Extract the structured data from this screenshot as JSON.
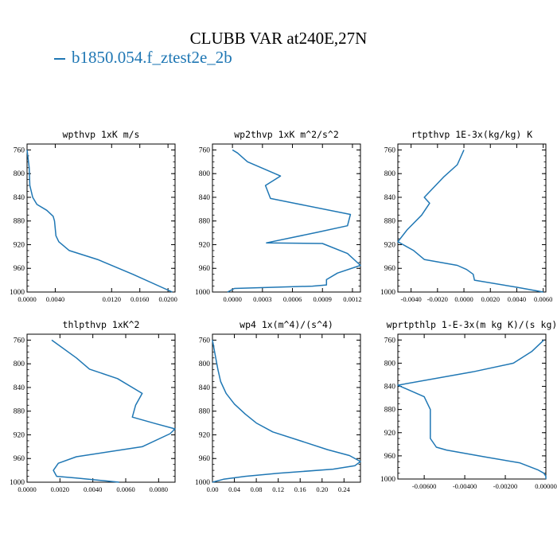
{
  "figure": {
    "title": "CLUBB VAR at240E,27N",
    "legend_label": "b1850.054.f_ztest2e_2b",
    "series_color": "#1f77b4"
  },
  "chart_data": [
    {
      "type": "line",
      "title": "wpthvp  1xK m/s",
      "ylim": [
        1000,
        750
      ],
      "yticks": [
        "760",
        "800",
        "840",
        "880",
        "920",
        "960",
        "1000"
      ],
      "xlim": [
        0.0,
        0.021
      ],
      "xticks": [
        "0.0000",
        "0.0040",
        "0.0120",
        "0.0160",
        "0.0200"
      ],
      "x": [
        0.0,
        0.0003,
        0.0004,
        0.0008,
        0.0014,
        0.0028,
        0.0037,
        0.0039,
        0.0041,
        0.0045,
        0.006,
        0.01,
        0.015,
        0.0206
      ],
      "y": [
        760,
        790,
        820,
        840,
        852,
        862,
        872,
        880,
        905,
        915,
        930,
        945,
        970,
        1000
      ]
    },
    {
      "type": "line",
      "title": "wp2thvp  1xK m^2/s^2",
      "ylim": [
        1000,
        750
      ],
      "yticks": [
        "760",
        "800",
        "840",
        "880",
        "920",
        "960",
        "1000"
      ],
      "xlim": [
        -0.0002,
        0.00128
      ],
      "xticks": [
        "0.0000",
        "0.0003",
        "0.0006",
        "0.0009",
        "0.0012"
      ],
      "x": [
        0.0,
        5e-05,
        0.00015,
        0.00048,
        0.00033,
        0.00038,
        0.00118,
        0.00115,
        0.00085,
        0.00034,
        0.0009,
        0.00115,
        0.00128,
        0.00105,
        0.00094,
        0.00094,
        0.0008,
        2e-05,
        -5e-05
      ],
      "y": [
        760,
        765,
        780,
        804,
        820,
        842,
        869,
        888,
        899,
        917,
        918,
        935,
        955,
        968,
        979,
        988,
        990,
        994,
        1000
      ]
    },
    {
      "type": "line",
      "title": "rtpthvp  1E-3x(kg/kg) K",
      "ylim": [
        1000,
        750
      ],
      "yticks": [
        "760",
        "800",
        "840",
        "880",
        "920",
        "960",
        "1000"
      ],
      "xlim": [
        -0.005,
        0.0062
      ],
      "xticks": [
        "-0.0040",
        "-0.0020",
        "0.0000",
        "0.0020",
        "0.0040",
        "0.0060"
      ],
      "x": [
        0.0,
        -0.0005,
        -0.0015,
        -0.003,
        -0.0026,
        -0.0032,
        -0.0043,
        -0.005,
        -0.0038,
        -0.003,
        -0.0005,
        0.0002,
        0.0007,
        0.0008,
        0.004,
        0.006
      ],
      "y": [
        760,
        785,
        805,
        840,
        850,
        870,
        895,
        915,
        930,
        945,
        955,
        962,
        970,
        980,
        992,
        1000
      ]
    },
    {
      "type": "line",
      "title": "thlpthvp  1xK^2",
      "ylim": [
        1000,
        750
      ],
      "yticks": [
        "760",
        "800",
        "840",
        "880",
        "920",
        "960",
        "1000"
      ],
      "xlim": [
        0.0,
        0.009
      ],
      "xticks": [
        "0.0000",
        "0.0020",
        "0.0040",
        "0.0060",
        "0.0080"
      ],
      "x": [
        0.0015,
        0.003,
        0.0038,
        0.0055,
        0.007,
        0.0066,
        0.0064,
        0.0078,
        0.009,
        0.0087,
        0.007,
        0.003,
        0.0019,
        0.0016,
        0.0018,
        0.003,
        0.0056
      ],
      "y": [
        760,
        790,
        809,
        825,
        850,
        870,
        890,
        901,
        910,
        918,
        940,
        957,
        968,
        980,
        990,
        993,
        1000
      ]
    },
    {
      "type": "line",
      "title": "wp4  1x(m^4)/(s^4)",
      "ylim": [
        1000,
        750
      ],
      "yticks": [
        "760",
        "800",
        "840",
        "880",
        "920",
        "960",
        "1000"
      ],
      "xlim": [
        0.0,
        0.27
      ],
      "xticks": [
        "0.00",
        "0.04",
        "0.08",
        "0.12",
        "0.16",
        "0.20",
        "0.24"
      ],
      "x": [
        0.0,
        0.005,
        0.01,
        0.015,
        0.025,
        0.04,
        0.06,
        0.08,
        0.11,
        0.16,
        0.21,
        0.25,
        0.27,
        0.26,
        0.22,
        0.12,
        0.06,
        0.02,
        0.0
      ],
      "y": [
        760,
        785,
        810,
        830,
        850,
        868,
        885,
        900,
        915,
        930,
        945,
        955,
        965,
        972,
        978,
        985,
        990,
        995,
        1000
      ]
    },
    {
      "type": "line",
      "title": "wprtpthlp  1-E-3x(m kg K)/(s kg)",
      "ylim": [
        1000,
        750
      ],
      "yticks": [
        "760",
        "800",
        "840",
        "880",
        "920",
        "960",
        "1000"
      ],
      "xlim": [
        -0.0073,
        0.0
      ],
      "xticks": [
        "-0.00600",
        "-0.00400",
        "-0.00200",
        "0.00000"
      ],
      "x": [
        -0.0001,
        -0.0007,
        -0.0016,
        -0.0036,
        -0.0073,
        -0.006,
        -0.0057,
        -0.0057,
        -0.0054,
        -0.0049,
        -0.003,
        -0.0013,
        -0.0004,
        -0.0001,
        0.0,
        0.0
      ],
      "y": [
        760,
        780,
        800,
        815,
        838,
        858,
        880,
        930,
        945,
        950,
        962,
        972,
        984,
        990,
        995,
        1000
      ]
    }
  ]
}
